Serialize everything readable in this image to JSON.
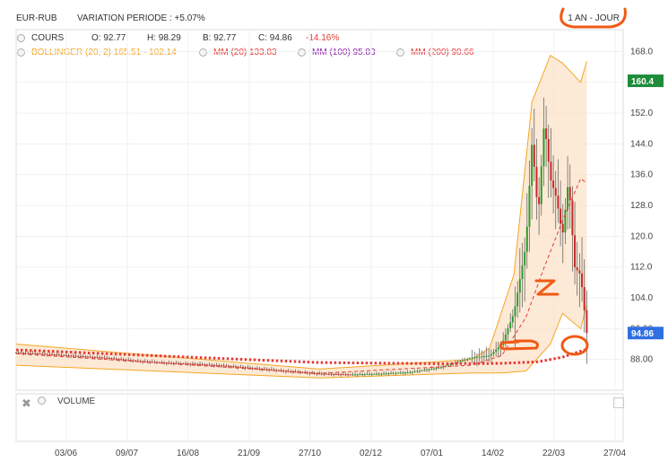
{
  "header": {
    "symbol": "EUR-RUB",
    "variation": "VARIATION PERIODE : +5.07%",
    "period": "1 AN - JOUR"
  },
  "legend": {
    "cours_label": "COURS",
    "open": "O: 92.77",
    "high": "H: 98.29",
    "low": "B: 92.77",
    "close": "C: 94.86",
    "change": "-14.16%",
    "bollinger": "BOLLINGER (20, 2) 165.51 - 102.14",
    "mm20": "MM (20) 133.83",
    "mm100": "MM (100) 95.83",
    "mm200": "MM (200) 90.66"
  },
  "volume_panel": {
    "label": "VOLUME"
  },
  "price_badges": {
    "upper": "160.4",
    "last": "94.86"
  },
  "colors": {
    "bollinger": "#f5a623",
    "bollinger_fill": "#fbe3c8",
    "mm20": "#e53935",
    "mm100": "#8e24aa",
    "mm200": "#e53935",
    "up": "#2e9b2e",
    "down": "#c62828",
    "badge_upper": "#1e8c3a",
    "badge_last": "#2f6fe0",
    "annotation": "#f05a14"
  },
  "chart_data": {
    "type": "candlestick",
    "y_ticks": [
      "168.0",
      "160.0",
      "152.0",
      "144.0",
      "136.0",
      "128.0",
      "120.0",
      "112.0",
      "104.0",
      "96.00",
      "88.00"
    ],
    "x_ticks": [
      "03/06",
      "09/07",
      "16/08",
      "21/09",
      "27/10",
      "02/12",
      "07/01",
      "14/02",
      "22/03",
      "27/04"
    ],
    "ylim": [
      80,
      173
    ],
    "grid": true,
    "series": [
      {
        "name": "COURS",
        "points": [
          [
            0,
            89.8
          ],
          [
            0.05,
            89.4
          ],
          [
            0.1,
            88.9
          ],
          [
            0.15,
            88.4
          ],
          [
            0.2,
            87.6
          ],
          [
            0.25,
            87.1
          ],
          [
            0.3,
            86.8
          ],
          [
            0.35,
            86.3
          ],
          [
            0.4,
            85.6
          ],
          [
            0.45,
            84.9
          ],
          [
            0.5,
            84.3
          ],
          [
            0.55,
            84.1
          ],
          [
            0.6,
            84.3
          ],
          [
            0.65,
            84.7
          ],
          [
            0.7,
            86.0
          ],
          [
            0.75,
            88.5
          ],
          [
            0.78,
            89.0
          ],
          [
            0.8,
            92
          ],
          [
            0.82,
            100
          ],
          [
            0.84,
            118
          ],
          [
            0.85,
            145
          ],
          [
            0.86,
            125
          ],
          [
            0.87,
            150
          ],
          [
            0.88,
            135
          ],
          [
            0.89,
            130
          ],
          [
            0.9,
            120
          ],
          [
            0.91,
            135
          ],
          [
            0.92,
            112
          ],
          [
            0.93,
            110
          ],
          [
            0.94,
            94.86
          ]
        ]
      },
      {
        "name": "BOLLINGER (20, 2)",
        "upper": [
          [
            0,
            92
          ],
          [
            0.5,
            85.5
          ],
          [
            0.75,
            88
          ],
          [
            0.78,
            91
          ],
          [
            0.82,
            110
          ],
          [
            0.85,
            155
          ],
          [
            0.88,
            167
          ],
          [
            0.9,
            165
          ],
          [
            0.93,
            160
          ],
          [
            0.94,
            165.5
          ]
        ],
        "lower": [
          [
            0,
            86.5
          ],
          [
            0.5,
            83.2
          ],
          [
            0.75,
            84.5
          ],
          [
            0.8,
            84.5
          ],
          [
            0.84,
            85
          ],
          [
            0.88,
            92
          ],
          [
            0.9,
            100
          ],
          [
            0.93,
            96
          ],
          [
            0.94,
            102.14
          ]
        ]
      },
      {
        "name": "MM (20)",
        "points": [
          [
            0,
            89.5
          ],
          [
            0.5,
            84.4
          ],
          [
            0.75,
            86.5
          ],
          [
            0.8,
            89
          ],
          [
            0.84,
            99
          ],
          [
            0.87,
            112
          ],
          [
            0.9,
            124
          ],
          [
            0.93,
            135
          ],
          [
            0.94,
            133.83
          ]
        ]
      },
      {
        "name": "MM (200)",
        "points": [
          [
            0,
            90.5
          ],
          [
            0.3,
            88.5
          ],
          [
            0.5,
            87.2
          ],
          [
            0.7,
            86.9
          ],
          [
            0.8,
            87.0
          ],
          [
            0.86,
            87.4
          ],
          [
            0.9,
            88.6
          ],
          [
            0.94,
            90.66
          ]
        ]
      }
    ]
  }
}
